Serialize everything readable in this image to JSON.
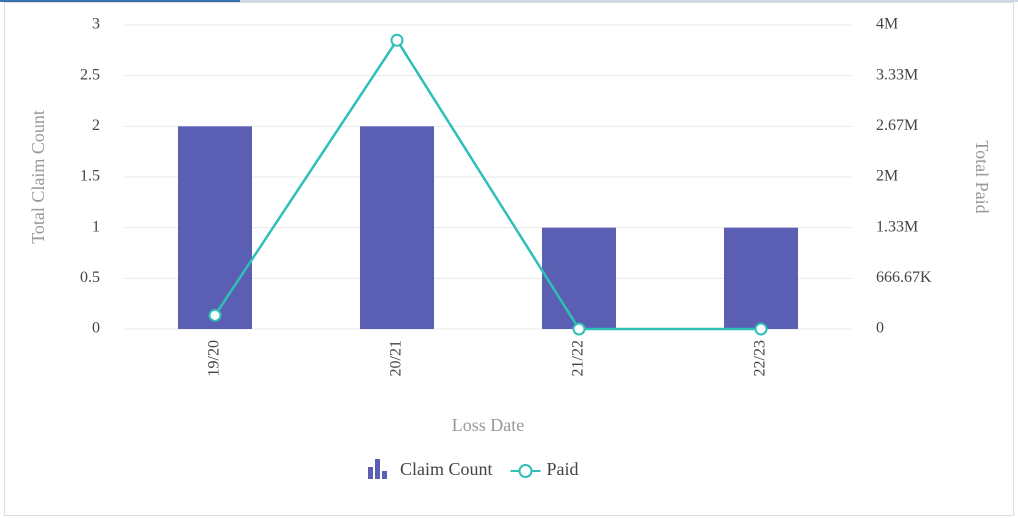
{
  "chart_data": {
    "type": "bar-line",
    "categories": [
      "19/20",
      "20/21",
      "21/22",
      "22/23"
    ],
    "series": [
      {
        "name": "Claim Count",
        "type": "bar",
        "color": "#5b5fb4",
        "values": [
          2,
          2,
          1,
          1
        ]
      },
      {
        "name": "Paid",
        "type": "line",
        "axis": "y2",
        "color": "#2ebfb7",
        "values": [
          180000,
          3800000,
          0,
          0
        ]
      }
    ],
    "x_label": "Loss Date",
    "y_label": "Total Claim Count",
    "y2_label": "Total Paid",
    "ylim": [
      0,
      3
    ],
    "yticks": [
      0,
      0.5,
      1,
      1.5,
      2,
      2.5,
      3
    ],
    "y2lim": [
      0,
      4000000
    ],
    "y2ticks": [
      0,
      {
        "value": 666666.67,
        "label": "666.67K"
      },
      {
        "value": 1333333.33,
        "label": "1.33M"
      },
      {
        "value": 2000000,
        "label": "2M"
      },
      {
        "value": 2666666.67,
        "label": "2.67M"
      },
      {
        "value": 3333333.33,
        "label": "3.33M"
      },
      {
        "value": 4000000,
        "label": "4M"
      }
    ],
    "grid": true,
    "legend": "bottom"
  }
}
